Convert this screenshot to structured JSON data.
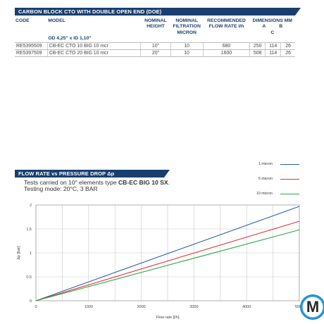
{
  "spec_table": {
    "title": "CARBON BLOCK CTO WITH DOUBLE OPEN END (DOE)",
    "headers": {
      "code": "CODE",
      "model": "MODEL",
      "nominal_height": [
        "NOMINAL",
        "HEIGHT"
      ],
      "nominal_filtration": [
        "NOMINAL",
        "FILTRATION",
        "MICRON"
      ],
      "flow_rate": [
        "RECOMMENDED",
        "FLOW RATE l/h"
      ],
      "dimensions": "DIMENSIONS MM",
      "dim_a": "A",
      "dim_b": "B",
      "dim_c": "C"
    },
    "od_label": "OD 4,25\" x ID 1,10\"",
    "rows": [
      {
        "code": "RE5395509",
        "model": "CB-EC CTO 10 BIG 10 mcr",
        "height": "10\"",
        "micron": "10",
        "flow": "680",
        "a": "250",
        "b": "114",
        "c": "26"
      },
      {
        "code": "RE5397509",
        "model": "CB-EC CTO 20 BIG 10 mcr",
        "height": "20\"",
        "micron": "10",
        "flow": "1600",
        "a": "508",
        "b": "114",
        "c": "26"
      }
    ]
  },
  "chart_section": {
    "title": "FLOW RATE vs PRESSURE DROP Δp",
    "test_line1_prefix": "Tests carried on 10\" elements type ",
    "test_line1_bold": "CB-EC BIG 10 SX",
    "test_line1_suffix": ".",
    "test_line2": "Testing mode: 20°C, 3 BAR"
  },
  "chart_data": {
    "type": "line",
    "title": "FLOW RATE vs PRESSURE DROP Δp",
    "xlabel": "Flow rate [l/h]",
    "ylabel": "Δp [bar]",
    "xlim": [
      0,
      5000
    ],
    "ylim": [
      0,
      2
    ],
    "xticks": [
      "0",
      "1000",
      "2000",
      "3000",
      "4000",
      "5000"
    ],
    "yticks": [
      "0",
      "0,5",
      "1",
      "1,5",
      "2"
    ],
    "grid": true,
    "legend_position": "top-right",
    "series": [
      {
        "name": "1 micron",
        "color": "#2b5ea8",
        "x": [
          0,
          5000
        ],
        "y": [
          0,
          1.97
        ]
      },
      {
        "name": "5 micron",
        "color": "#e0333c",
        "x": [
          0,
          5000
        ],
        "y": [
          0,
          1.66
        ]
      },
      {
        "name": "10 micron",
        "color": "#2aa84a",
        "x": [
          0,
          5000
        ],
        "y": [
          0,
          1.48
        ]
      }
    ]
  }
}
